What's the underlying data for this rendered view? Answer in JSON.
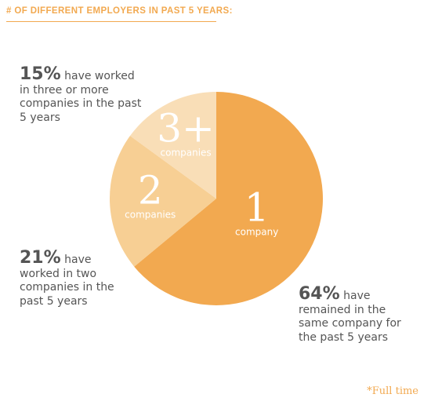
{
  "header": {
    "title": "# OF DIFFERENT EMPLOYERS IN PAST 5 YEARS:"
  },
  "callouts": {
    "three_plus": {
      "pct": "15%",
      "text": " have worked in three or more companies in the past 5 years"
    },
    "two": {
      "pct": "21%",
      "text": " have worked in two companies in the past 5 years"
    },
    "one": {
      "pct": "64%",
      "text": " have remained in the same company for the past 5 years"
    }
  },
  "footnote": "*Full time",
  "chart_data": {
    "type": "pie",
    "title": "# OF DIFFERENT EMPLOYERS IN PAST 5 YEARS:",
    "slices": [
      {
        "label": "1",
        "sublabel": "company",
        "value": 64,
        "color": "#F2A950"
      },
      {
        "label": "2",
        "sublabel": "companies",
        "value": 21,
        "color": "#F7CF94"
      },
      {
        "label": "3+",
        "sublabel": "companies",
        "value": 15,
        "color": "#F9DEB7"
      }
    ]
  }
}
